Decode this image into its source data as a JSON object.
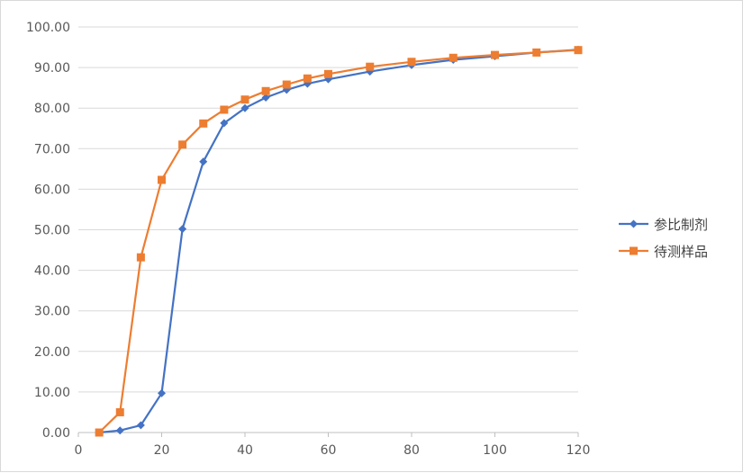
{
  "chart_data": {
    "type": "line",
    "title": "",
    "xlabel": "",
    "ylabel": "",
    "xlim": [
      0,
      120
    ],
    "ylim": [
      0,
      100
    ],
    "x_ticks": [
      "0",
      "20",
      "40",
      "60",
      "80",
      "100",
      "120"
    ],
    "y_ticks": [
      "0.00",
      "10.00",
      "20.00",
      "30.00",
      "40.00",
      "50.00",
      "60.00",
      "70.00",
      "80.00",
      "90.00",
      "100.00"
    ],
    "grid": "horizontal",
    "legend": "right",
    "series": [
      {
        "name": "参比制剂",
        "color": "#4472c4",
        "marker": "diamond",
        "points": [
          [
            5,
            0.0
          ],
          [
            10,
            0.5
          ],
          [
            15,
            1.8
          ],
          [
            20,
            9.7
          ],
          [
            25,
            50.2
          ],
          [
            30,
            66.8
          ],
          [
            35,
            76.3
          ],
          [
            40,
            80.0
          ],
          [
            45,
            82.6
          ],
          [
            50,
            84.5
          ],
          [
            55,
            86.0
          ],
          [
            60,
            87.1
          ],
          [
            70,
            89.0
          ],
          [
            80,
            90.6
          ],
          [
            90,
            91.9
          ],
          [
            100,
            92.8
          ],
          [
            110,
            93.7
          ],
          [
            120,
            94.4
          ]
        ]
      },
      {
        "name": "待测样品",
        "color": "#ed7d31",
        "marker": "square",
        "points": [
          [
            5,
            0.0
          ],
          [
            10,
            5.0
          ],
          [
            15,
            43.2
          ],
          [
            20,
            62.3
          ],
          [
            25,
            71.0
          ],
          [
            30,
            76.2
          ],
          [
            35,
            79.6
          ],
          [
            40,
            82.1
          ],
          [
            45,
            84.2
          ],
          [
            50,
            85.8
          ],
          [
            55,
            87.3
          ],
          [
            60,
            88.4
          ],
          [
            70,
            90.2
          ],
          [
            80,
            91.4
          ],
          [
            90,
            92.4
          ],
          [
            100,
            93.1
          ],
          [
            110,
            93.7
          ],
          [
            120,
            94.3
          ]
        ]
      }
    ]
  }
}
